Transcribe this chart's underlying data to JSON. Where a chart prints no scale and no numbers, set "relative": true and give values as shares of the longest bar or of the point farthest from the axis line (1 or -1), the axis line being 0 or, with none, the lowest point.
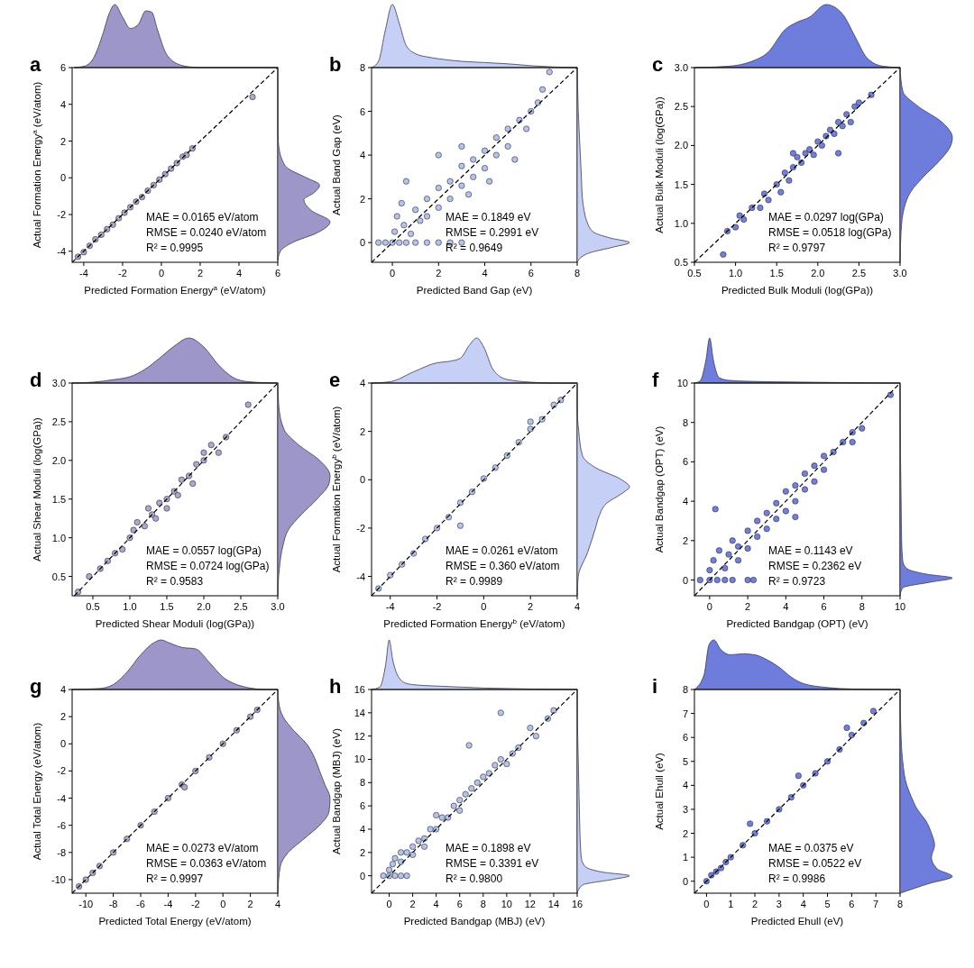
{
  "chart_data": [
    {
      "type": "area",
      "relative": true,
      "color": "#9d96c8",
      "xlim": [
        -4.6,
        6
      ],
      "tick_labels": false,
      "x": [
        -4.5,
        -4,
        -3.5,
        -3,
        -2.7,
        -2.4,
        -2,
        -1.6,
        -1.2,
        -0.8,
        -0.5,
        -0.2,
        0.2,
        0.6,
        1,
        1.5,
        2,
        6
      ],
      "values": [
        0,
        0.02,
        0.15,
        0.55,
        0.85,
        1,
        0.8,
        0.62,
        0.68,
        0.9,
        0.88,
        0.6,
        0.25,
        0.1,
        0.04,
        0.01,
        0,
        0
      ]
    },
    {
      "type": "scatter",
      "title": "a",
      "xlabel": "Predicted Formation Energy$^{a}$ (eV/atom)",
      "ylabel": "Actual Formation Energy$^{a}$ (eV/atom)",
      "xlim": [
        -4.6,
        6
      ],
      "ylim": [
        -4.6,
        6
      ],
      "xticks": [
        -4,
        -2,
        0,
        2,
        4,
        6
      ],
      "yticks": [
        -4,
        -2,
        0,
        2,
        4,
        6
      ],
      "marker": "circle",
      "annotations": [
        "MAE = 0.0165 eV/atom",
        "RMSE = 0.0240 eV/atom",
        "R² = 0.9995"
      ],
      "series": [
        {
          "type": "scatter",
          "color": "#aaa8c6",
          "x": [
            -4.3,
            -4,
            -3.7,
            -3.4,
            -3.1,
            -2.8,
            -2.5,
            -2.2,
            -1.9,
            -1.6,
            -1.3,
            -1,
            -0.7,
            -0.4,
            -0.1,
            0.2,
            0.5,
            0.8,
            1.1,
            1.3,
            1.6,
            4.7
          ],
          "values": [
            -4.3,
            -4.05,
            -3.7,
            -3.35,
            -3.1,
            -2.8,
            -2.55,
            -2.2,
            -1.9,
            -1.6,
            -1.3,
            -1.05,
            -0.7,
            -0.4,
            -0.1,
            0.2,
            0.5,
            0.8,
            1.15,
            1.25,
            1.6,
            4.4
          ]
        },
        {
          "type": "line",
          "color": "#000000",
          "line_style": "dashed",
          "marker": "none",
          "x": [
            -4.6,
            6
          ],
          "values": [
            -4.6,
            6
          ]
        }
      ]
    },
    {
      "type": "area",
      "relative": true,
      "orientation": "horizontal",
      "color": "#9d96c8",
      "ylim": [
        -4.6,
        6
      ],
      "tick_labels": false,
      "x": [
        -4.5,
        -4,
        -3.5,
        -3,
        -2.4,
        -1.8,
        -1.2,
        -0.8,
        -0.4,
        0,
        0.5,
        1,
        1.5,
        2,
        3,
        4,
        6
      ],
      "values": [
        0,
        0.05,
        0.3,
        0.75,
        1,
        0.65,
        0.5,
        0.7,
        0.8,
        0.55,
        0.2,
        0.08,
        0.03,
        0.01,
        0,
        0,
        0
      ]
    },
    {
      "type": "area",
      "relative": true,
      "color": "#c6cff6",
      "xlim": [
        -0.9,
        8
      ],
      "tick_labels": false,
      "x": [
        -0.9,
        -0.6,
        -0.3,
        0,
        0.3,
        0.6,
        1,
        1.5,
        2,
        3,
        4,
        5,
        6,
        7,
        8
      ],
      "values": [
        0,
        0.1,
        0.6,
        1,
        0.7,
        0.35,
        0.22,
        0.17,
        0.14,
        0.1,
        0.08,
        0.06,
        0.03,
        0.01,
        0
      ]
    },
    {
      "type": "scatter",
      "title": "b",
      "xlabel": "Predicted Band Gap (eV)",
      "ylabel": "Actual Band Gap (eV)",
      "xlim": [
        -0.9,
        8
      ],
      "ylim": [
        -0.9,
        8
      ],
      "xticks": [
        0,
        2,
        4,
        6,
        8
      ],
      "yticks": [
        0,
        2,
        4,
        6,
        8
      ],
      "marker": "circle",
      "annotations": [
        "MAE = 0.1849 eV",
        "RMSE = 0.2991 eV",
        "R² = 0.9649"
      ],
      "series": [
        {
          "type": "scatter",
          "color": "#b5c3ea",
          "x": [
            -0.6,
            -0.3,
            0,
            0.3,
            0.6,
            1,
            1.5,
            2,
            2.5,
            3,
            0.1,
            0.2,
            0.4,
            0.5,
            0.8,
            1,
            1.2,
            1.5,
            1.5,
            2,
            2,
            2,
            2.5,
            2.5,
            3,
            3,
            3,
            3.3,
            3.5,
            3.5,
            4,
            4,
            4.2,
            4.5,
            4.5,
            5,
            5,
            5.3,
            5.5,
            5.8,
            6,
            6.3,
            6.5,
            6.8,
            0.6
          ],
          "values": [
            0,
            0,
            0,
            0,
            0,
            0,
            0,
            0,
            0,
            0,
            0.5,
            1.2,
            1.8,
            0.8,
            0.4,
            1.5,
            1,
            2,
            1.2,
            2.5,
            1.6,
            4,
            2.8,
            2,
            3.5,
            2.6,
            4.4,
            2.2,
            3.8,
            3,
            4.2,
            3.4,
            2.8,
            4.8,
            4,
            5.2,
            4.4,
            3.8,
            5.6,
            5.2,
            6,
            6.4,
            7,
            7.8,
            2.8
          ]
        },
        {
          "type": "line",
          "color": "#000000",
          "line_style": "dashed",
          "marker": "none",
          "x": [
            -0.9,
            8
          ],
          "values": [
            -0.9,
            8
          ]
        }
      ]
    },
    {
      "type": "area",
      "relative": true,
      "orientation": "horizontal",
      "color": "#c6cff6",
      "ylim": [
        -0.9,
        8
      ],
      "tick_labels": false,
      "x": [
        -0.9,
        -0.5,
        -0.2,
        0,
        0.2,
        0.5,
        1,
        1.5,
        2,
        3,
        4,
        5,
        6,
        7,
        8
      ],
      "values": [
        0,
        0.2,
        0.7,
        1,
        0.65,
        0.3,
        0.18,
        0.13,
        0.1,
        0.08,
        0.06,
        0.04,
        0.02,
        0.01,
        0
      ]
    },
    {
      "type": "area",
      "relative": true,
      "color": "#6e7ddc",
      "xlim": [
        0.5,
        3
      ],
      "tick_labels": false,
      "x": [
        0.5,
        0.9,
        1.2,
        1.4,
        1.6,
        1.75,
        1.9,
        2.1,
        2.3,
        2.45,
        2.6,
        2.8,
        3
      ],
      "values": [
        0,
        0.02,
        0.1,
        0.25,
        0.6,
        0.72,
        0.8,
        1,
        0.85,
        0.5,
        0.15,
        0.02,
        0
      ]
    },
    {
      "type": "scatter",
      "title": "c",
      "xlabel": "Predicted Bulk Moduli (log(GPa))",
      "ylabel": "Actual Bulk Moduli (log(GPa))",
      "xlim": [
        0.5,
        3
      ],
      "ylim": [
        0.5,
        3
      ],
      "xticks": [
        {
          "value": 0.5,
          "label": "0.5"
        },
        {
          "value": 1,
          "label": "1.0"
        },
        {
          "value": 1.5,
          "label": "1.5"
        },
        {
          "value": 2,
          "label": "2.0"
        },
        {
          "value": 2.5,
          "label": "2.5"
        },
        {
          "value": 3,
          "label": "3.0"
        }
      ],
      "yticks": [
        {
          "value": 0.5,
          "label": "0.5"
        },
        {
          "value": 1,
          "label": "1.0"
        },
        {
          "value": 1.5,
          "label": "1.5"
        },
        {
          "value": 2,
          "label": "2.0"
        },
        {
          "value": 2.5,
          "label": "2.5"
        },
        {
          "value": 3,
          "label": "3.0"
        }
      ],
      "marker": "circle",
      "annotations": [
        "MAE = 0.0297 log(GPa)",
        "RMSE = 0.0518 log(GPa)",
        "R² = 0.9797"
      ],
      "series": [
        {
          "type": "scatter",
          "color": "#7180dc",
          "x": [
            0.85,
            0.9,
            1,
            1.05,
            1.1,
            1.2,
            1.3,
            1.35,
            1.4,
            1.5,
            1.55,
            1.6,
            1.65,
            1.7,
            1.75,
            1.8,
            1.85,
            1.9,
            1.95,
            2,
            2.05,
            2.1,
            2.15,
            2.2,
            2.25,
            2.25,
            2.3,
            2.35,
            2.4,
            2.45,
            2.5,
            2.65,
            1.7
          ],
          "values": [
            0.6,
            0.9,
            0.95,
            1.1,
            1.05,
            1.2,
            1.2,
            1.38,
            1.3,
            1.5,
            1.4,
            1.65,
            1.55,
            1.72,
            1.85,
            1.78,
            1.9,
            1.95,
            1.88,
            2.05,
            2,
            2.12,
            2.2,
            2.15,
            1.9,
            2.3,
            2.25,
            2.4,
            2.3,
            2.5,
            2.55,
            2.65,
            1.9
          ]
        },
        {
          "type": "line",
          "color": "#000000",
          "line_style": "dashed",
          "marker": "none",
          "x": [
            0.5,
            3
          ],
          "values": [
            0.5,
            3
          ]
        }
      ]
    },
    {
      "type": "area",
      "relative": true,
      "orientation": "horizontal",
      "color": "#6e7ddc",
      "ylim": [
        0.5,
        3
      ],
      "tick_labels": false,
      "x": [
        0.5,
        0.9,
        1.2,
        1.4,
        1.6,
        1.8,
        2,
        2.1,
        2.3,
        2.5,
        2.7,
        3
      ],
      "values": [
        0,
        0.02,
        0.08,
        0.2,
        0.45,
        0.75,
        0.97,
        1,
        0.8,
        0.35,
        0.05,
        0
      ]
    },
    {
      "type": "area",
      "relative": true,
      "color": "#9d96c8",
      "xlim": [
        0.22,
        3
      ],
      "tick_labels": false,
      "x": [
        0.22,
        0.5,
        0.8,
        1,
        1.2,
        1.4,
        1.6,
        1.8,
        2,
        2.2,
        2.4,
        2.6,
        3
      ],
      "values": [
        0,
        0.02,
        0.08,
        0.14,
        0.3,
        0.55,
        0.82,
        1,
        0.8,
        0.4,
        0.12,
        0.03,
        0
      ]
    },
    {
      "type": "scatter",
      "title": "d",
      "xlabel": "Predicted Shear Moduli (log(GPa))",
      "ylabel": "Actual Shear Moduli (log(GPa))",
      "xlim": [
        0.22,
        3
      ],
      "ylim": [
        0.25,
        3
      ],
      "xticks": [
        {
          "value": 0.5,
          "label": "0.5"
        },
        {
          "value": 1,
          "label": "1.0"
        },
        {
          "value": 1.5,
          "label": "1.5"
        },
        {
          "value": 2,
          "label": "2.0"
        },
        {
          "value": 2.5,
          "label": "2.5"
        },
        {
          "value": 3,
          "label": "3.0"
        }
      ],
      "yticks": [
        {
          "value": 0.5,
          "label": "0.5"
        },
        {
          "value": 1,
          "label": "1.0"
        },
        {
          "value": 1.5,
          "label": "1.5"
        },
        {
          "value": 2,
          "label": "2.0"
        },
        {
          "value": 2.5,
          "label": "2.5"
        },
        {
          "value": 3,
          "label": "3.0"
        }
      ],
      "marker": "circle",
      "annotations": [
        "MAE = 0.0557 log(GPa)",
        "RMSE = 0.0724 log(GPa)",
        "R² = 0.9583"
      ],
      "series": [
        {
          "type": "scatter",
          "color": "#aaa8cc",
          "x": [
            0.3,
            0.45,
            0.6,
            0.7,
            0.8,
            0.9,
            1,
            1.05,
            1.1,
            1.2,
            1.3,
            1.35,
            1.4,
            1.5,
            1.5,
            1.6,
            1.65,
            1.7,
            1.8,
            1.85,
            1.9,
            2,
            2,
            2.1,
            2.2,
            2.3,
            2.6,
            1.25
          ],
          "values": [
            0.3,
            0.5,
            0.6,
            0.7,
            0.8,
            0.85,
            1,
            1.1,
            1.2,
            1.15,
            1.3,
            1.25,
            1.45,
            1.5,
            1.38,
            1.6,
            1.55,
            1.75,
            1.8,
            1.7,
            1.95,
            2,
            2.1,
            2.2,
            2.1,
            2.3,
            2.72,
            1.38
          ]
        },
        {
          "type": "line",
          "color": "#000000",
          "line_style": "dashed",
          "marker": "none",
          "x": [
            0.25,
            3
          ],
          "values": [
            0.25,
            3
          ]
        }
      ]
    },
    {
      "type": "area",
      "relative": true,
      "orientation": "horizontal",
      "color": "#9d96c8",
      "ylim": [
        0.25,
        3
      ],
      "tick_labels": false,
      "x": [
        0.25,
        0.6,
        0.9,
        1.1,
        1.3,
        1.5,
        1.7,
        1.8,
        2,
        2.2,
        2.4,
        2.7,
        3
      ],
      "values": [
        0,
        0.03,
        0.1,
        0.2,
        0.45,
        0.75,
        0.98,
        1,
        0.8,
        0.4,
        0.12,
        0.02,
        0
      ]
    },
    {
      "type": "area",
      "relative": true,
      "color": "#c6cff6",
      "xlim": [
        -4.8,
        4
      ],
      "tick_labels": false,
      "x": [
        -4.8,
        -4,
        -3,
        -2,
        -1.5,
        -1,
        -0.6,
        -0.3,
        0,
        0.4,
        1,
        2,
        3,
        4
      ],
      "values": [
        0,
        0.03,
        0.25,
        0.45,
        0.48,
        0.55,
        0.85,
        1,
        0.8,
        0.3,
        0.08,
        0.02,
        0,
        0
      ]
    },
    {
      "type": "scatter",
      "title": "e",
      "xlabel": "Predicted Formation Energy$^{b}$ (eV/atom)",
      "ylabel": "Actual Formation Energy$^{b}$ (eV/atom)",
      "xlim": [
        -4.8,
        4
      ],
      "ylim": [
        -4.8,
        4
      ],
      "xticks": [
        -4,
        -2,
        0,
        2,
        4
      ],
      "yticks": [
        -4,
        -2,
        0,
        2,
        4
      ],
      "marker": "circle",
      "annotations": [
        "MAE = 0.0261 eV/atom",
        "RMSE = 0.360 eV/atom",
        "R² = 0.9989"
      ],
      "series": [
        {
          "type": "scatter",
          "color": "#b5c3ea",
          "x": [
            -4.5,
            -4,
            -3.5,
            -3,
            -2.5,
            -2,
            -1.5,
            -1,
            -0.5,
            0,
            0.5,
            1,
            1.5,
            2,
            2.5,
            3,
            3.3,
            -1,
            2
          ],
          "values": [
            -4.5,
            -3.95,
            -3.5,
            -3.05,
            -2.45,
            -2,
            -1.55,
            -0.95,
            -0.5,
            0.05,
            0.5,
            1,
            1.55,
            2.1,
            2.5,
            3.1,
            3.3,
            -1.9,
            2.4
          ]
        },
        {
          "type": "line",
          "color": "#000000",
          "line_style": "dashed",
          "marker": "none",
          "x": [
            -4.8,
            4
          ],
          "values": [
            -4.8,
            4
          ]
        }
      ]
    },
    {
      "type": "area",
      "relative": true,
      "orientation": "horizontal",
      "color": "#c6cff6",
      "ylim": [
        -4.8,
        4
      ],
      "tick_labels": false,
      "x": [
        -4.8,
        -4,
        -3,
        -2,
        -1.5,
        -1,
        -0.5,
        -0.3,
        0,
        0.5,
        1,
        2,
        3,
        4
      ],
      "values": [
        0,
        0.02,
        0.2,
        0.35,
        0.42,
        0.55,
        0.9,
        1,
        0.85,
        0.35,
        0.1,
        0.03,
        0,
        0
      ]
    },
    {
      "type": "area",
      "relative": true,
      "color": "#6e7ddc",
      "xlim": [
        -0.8,
        10
      ],
      "tick_labels": false,
      "x": [
        -0.8,
        -0.5,
        -0.2,
        0,
        0.2,
        0.5,
        1,
        2,
        3,
        4,
        6,
        8,
        10
      ],
      "values": [
        0,
        0.05,
        0.5,
        1,
        0.5,
        0.12,
        0.06,
        0.04,
        0.03,
        0.025,
        0.015,
        0.005,
        0
      ]
    },
    {
      "type": "scatter",
      "title": "f",
      "xlabel": "Predicted Bandgap (OPT) (eV)",
      "ylabel": "Actual Bandgap (OPT) (eV)",
      "xlim": [
        -0.8,
        10
      ],
      "ylim": [
        -0.8,
        10
      ],
      "xticks": [
        0,
        2,
        4,
        6,
        8,
        10
      ],
      "yticks": [
        0,
        2,
        4,
        6,
        8,
        10
      ],
      "marker": "circle",
      "annotations": [
        "MAE = 0.1143 eV",
        "RMSE = 0.2362 eV",
        "R² = 0.9723"
      ],
      "series": [
        {
          "type": "scatter",
          "color": "#7180dc",
          "x": [
            -0.5,
            0,
            0.4,
            0.8,
            1.2,
            2,
            2.3,
            0,
            0.2,
            0.5,
            0.3,
            0.8,
            1,
            1.2,
            1.5,
            1.5,
            2,
            2,
            2.5,
            2.5,
            3,
            3,
            3.5,
            3.5,
            4,
            4,
            4.5,
            4.5,
            5,
            5,
            5.5,
            5.5,
            6,
            6,
            6.5,
            7,
            7.5,
            7.5,
            8,
            9.5,
            4.5
          ],
          "values": [
            0,
            0,
            0,
            0,
            0,
            0,
            0,
            0.5,
            1,
            1.5,
            3.6,
            0.6,
            1.3,
            2,
            1,
            1.7,
            2.5,
            1.6,
            3,
            2.2,
            3.4,
            2.6,
            3.9,
            3.1,
            4.5,
            3.5,
            4.8,
            4,
            5.4,
            4.6,
            5.8,
            5,
            6.3,
            5.6,
            6.5,
            7,
            7.5,
            7,
            7.7,
            9.4,
            3.2
          ]
        },
        {
          "type": "line",
          "color": "#000000",
          "line_style": "dashed",
          "marker": "none",
          "x": [
            -0.8,
            10
          ],
          "values": [
            -0.8,
            10
          ]
        }
      ]
    },
    {
      "type": "area",
      "relative": true,
      "orientation": "horizontal",
      "color": "#6e7ddc",
      "ylim": [
        -0.8,
        10
      ],
      "tick_labels": false,
      "x": [
        -0.8,
        -0.4,
        -0.1,
        0.1,
        0.3,
        0.6,
        1,
        2,
        4,
        6,
        8,
        10
      ],
      "values": [
        0,
        0.05,
        0.6,
        1,
        0.5,
        0.12,
        0.05,
        0.03,
        0.02,
        0.01,
        0.005,
        0
      ]
    },
    {
      "type": "area",
      "relative": true,
      "color": "#9d96c8",
      "xlim": [
        -11,
        4
      ],
      "tick_labels": false,
      "x": [
        -11,
        -9,
        -8,
        -7,
        -6,
        -5,
        -4.5,
        -4,
        -3,
        -2,
        -1,
        0,
        1,
        2,
        3,
        4
      ],
      "values": [
        0,
        0.02,
        0.1,
        0.35,
        0.7,
        0.95,
        1,
        0.95,
        0.85,
        0.82,
        0.55,
        0.25,
        0.1,
        0.03,
        0,
        0
      ]
    },
    {
      "type": "scatter",
      "title": "g",
      "xlabel": "Predicted Total Energy (eV/atom)",
      "ylabel": "Actual Total Energy (eV/atom)",
      "xlim": [
        -11,
        4
      ],
      "ylim": [
        -11,
        4
      ],
      "xticks": [
        -10,
        -8,
        -6,
        -4,
        -2,
        0,
        2,
        4
      ],
      "yticks": [
        -10,
        -8,
        -6,
        -4,
        -2,
        0,
        2,
        4
      ],
      "marker": "circle",
      "annotations": [
        "MAE = 0.0273 eV/atom",
        "RMSE = 0.0363 eV/atom",
        "R² = 0.9997"
      ],
      "series": [
        {
          "type": "scatter",
          "color": "#aaa8c6",
          "x": [
            -10.5,
            -10,
            -9.5,
            -9,
            -8,
            -7,
            -6,
            -5,
            -4,
            -3,
            -2.8,
            -2,
            -1,
            0,
            1,
            2,
            2.5
          ],
          "values": [
            -10.5,
            -10,
            -9.5,
            -9,
            -8,
            -7,
            -6,
            -5,
            -4,
            -3,
            -3.2,
            -2,
            -1,
            0,
            1,
            2,
            2.5
          ]
        },
        {
          "type": "line",
          "color": "#000000",
          "line_style": "dashed",
          "marker": "none",
          "x": [
            -11,
            4
          ],
          "values": [
            -11,
            4
          ]
        }
      ]
    },
    {
      "type": "area",
      "relative": true,
      "orientation": "horizontal",
      "color": "#9d96c8",
      "ylim": [
        -11,
        4
      ],
      "tick_labels": false,
      "x": [
        -11,
        -9,
        -8,
        -7,
        -6,
        -5,
        -4,
        -3,
        -2,
        -1,
        0,
        1,
        2,
        3,
        4
      ],
      "values": [
        0,
        0.05,
        0.2,
        0.5,
        0.8,
        0.98,
        1,
        0.9,
        0.8,
        0.7,
        0.55,
        0.3,
        0.1,
        0.02,
        0
      ]
    },
    {
      "type": "area",
      "relative": true,
      "color": "#c6cff6",
      "xlim": [
        -1.5,
        16
      ],
      "tick_labels": false,
      "x": [
        -1.5,
        -0.8,
        -0.3,
        0,
        0.3,
        0.8,
        1.5,
        2,
        4,
        6,
        8,
        10,
        12,
        16
      ],
      "values": [
        0,
        0.05,
        0.5,
        1,
        0.6,
        0.25,
        0.12,
        0.1,
        0.07,
        0.05,
        0.03,
        0.02,
        0.01,
        0
      ]
    },
    {
      "type": "scatter",
      "title": "h",
      "xlabel": "Predicted Bandgap (MBJ) (eV)",
      "ylabel": "Actual Bandgap (MBJ) (eV)",
      "xlim": [
        -1.5,
        16
      ],
      "ylim": [
        -1.5,
        16
      ],
      "xticks": [
        0,
        2,
        4,
        6,
        8,
        10,
        12,
        14,
        16
      ],
      "yticks": [
        0,
        2,
        4,
        6,
        8,
        10,
        12,
        14,
        16
      ],
      "marker": "circle",
      "annotations": [
        "MAE = 0.1898 eV",
        "RMSE = 0.3391 eV",
        "R² = 0.9800"
      ],
      "series": [
        {
          "type": "scatter",
          "color": "#b5c3ea",
          "x": [
            -0.5,
            0,
            0.5,
            1,
            1.5,
            0,
            0.3,
            0.5,
            1,
            1,
            1.5,
            2,
            2,
            2.5,
            3,
            3,
            3.5,
            4,
            4,
            4.5,
            5,
            5.5,
            6,
            6,
            6.5,
            6.8,
            7,
            7.5,
            8,
            8.5,
            9,
            9.5,
            9.5,
            10,
            10.5,
            11,
            12,
            12.5,
            13.5,
            14
          ],
          "values": [
            0,
            0,
            0,
            0,
            0,
            0.5,
            1,
            1.5,
            1.2,
            2,
            2,
            2.5,
            1.8,
            3,
            3.2,
            2.5,
            4,
            4,
            5.2,
            5,
            5,
            6,
            6.5,
            5.6,
            7,
            11.2,
            7.5,
            8,
            8.5,
            8.8,
            9.5,
            14,
            10,
            9.6,
            10.5,
            11,
            12.7,
            12,
            13.5,
            14.2
          ]
        },
        {
          "type": "line",
          "color": "#000000",
          "line_style": "dashed",
          "marker": "none",
          "x": [
            -1.5,
            16
          ],
          "values": [
            -1.5,
            16
          ]
        }
      ]
    },
    {
      "type": "area",
      "relative": true,
      "orientation": "horizontal",
      "color": "#c6cff6",
      "ylim": [
        -1.5,
        16
      ],
      "tick_labels": false,
      "x": [
        -1.5,
        -0.8,
        -0.3,
        0,
        0.3,
        0.8,
        1.5,
        2,
        4,
        6,
        8,
        10,
        12,
        16
      ],
      "values": [
        0,
        0.1,
        0.7,
        1,
        0.5,
        0.15,
        0.08,
        0.07,
        0.05,
        0.04,
        0.03,
        0.02,
        0.01,
        0
      ]
    },
    {
      "type": "area",
      "relative": true,
      "color": "#6e7ddc",
      "xlim": [
        -0.5,
        8
      ],
      "tick_labels": false,
      "x": [
        -0.5,
        -0.1,
        0.1,
        0.3,
        0.6,
        1,
        1.5,
        2,
        2.5,
        3,
        3.5,
        4,
        5,
        6,
        8
      ],
      "values": [
        0,
        0.3,
        0.9,
        1,
        0.8,
        0.7,
        0.72,
        0.7,
        0.6,
        0.45,
        0.25,
        0.12,
        0.04,
        0.01,
        0
      ]
    },
    {
      "type": "scatter",
      "title": "i",
      "xlabel": "Predicted Ehull (eV)",
      "ylabel": "Actual Ehull  (eV)",
      "xlim": [
        -0.5,
        8
      ],
      "ylim": [
        -0.5,
        8
      ],
      "xticks": [
        0,
        1,
        2,
        3,
        4,
        5,
        6,
        7,
        8
      ],
      "yticks": [
        0,
        1,
        2,
        3,
        4,
        5,
        6,
        7,
        8
      ],
      "marker": "circle",
      "annotations": [
        "MAE = 0.0375 eV",
        "RMSE = 0.0522 eV",
        "R² = 0.9986"
      ],
      "series": [
        {
          "type": "scatter",
          "color": "#7180dc",
          "x": [
            0,
            0.2,
            0.4,
            0.6,
            0.8,
            1,
            1.5,
            2,
            1.8,
            2.5,
            3,
            3.5,
            3.8,
            4,
            4.5,
            5,
            5.5,
            5.8,
            6,
            6.5,
            6.9
          ],
          "values": [
            0,
            0.25,
            0.4,
            0.55,
            0.8,
            1,
            1.5,
            2,
            2.4,
            2.5,
            3,
            3.5,
            4.4,
            4,
            4.5,
            5,
            5.5,
            6.4,
            6.1,
            6.6,
            7.1
          ]
        },
        {
          "type": "line",
          "color": "#000000",
          "line_style": "dashed",
          "marker": "none",
          "x": [
            -0.5,
            8
          ],
          "values": [
            -0.5,
            8
          ]
        }
      ]
    },
    {
      "type": "area",
      "relative": true,
      "orientation": "horizontal",
      "color": "#6e7ddc",
      "ylim": [
        -0.5,
        8
      ],
      "tick_labels": false,
      "x": [
        -0.5,
        -0.1,
        0.2,
        0.5,
        1,
        1.5,
        2,
        2.5,
        3,
        3.5,
        4,
        5,
        6,
        8
      ],
      "values": [
        0,
        0.55,
        1,
        0.72,
        0.6,
        0.66,
        0.6,
        0.5,
        0.33,
        0.22,
        0.13,
        0.05,
        0.02,
        0
      ]
    }
  ]
}
